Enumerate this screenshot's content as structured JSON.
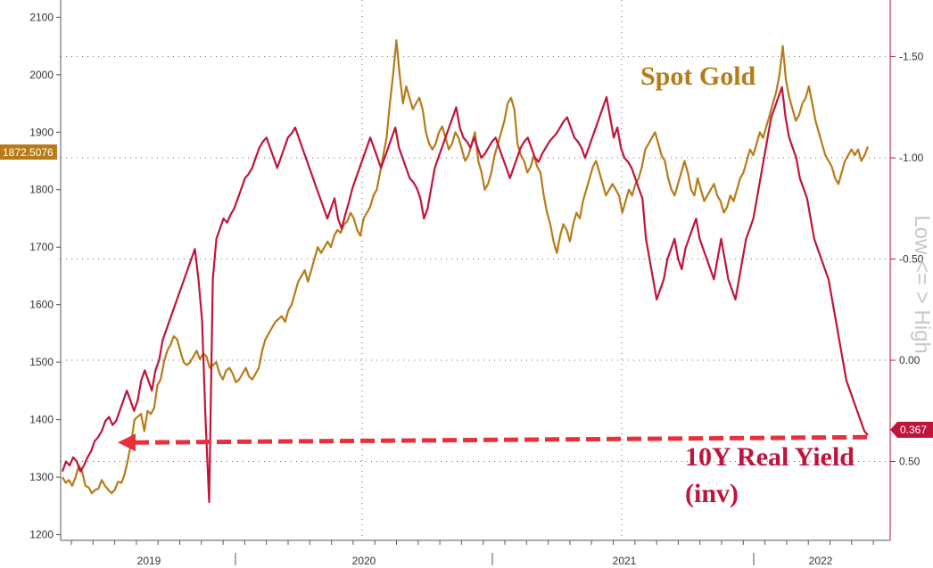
{
  "chart_data": {
    "type": "line",
    "title": "",
    "x_labels": [
      "2019",
      "2020",
      "2021",
      "2022"
    ],
    "left_axis": {
      "ticks": [
        "2100",
        "2000",
        "1900",
        "1800",
        "1700",
        "1600",
        "1500",
        "1400",
        "1300",
        "1200"
      ],
      "ylim": [
        1190,
        2130
      ]
    },
    "right_axis": {
      "ticks": [
        "-1.50",
        "-1.00",
        "-0.50",
        "0.00",
        "0.50"
      ],
      "ylim": [
        -1.78,
        0.89
      ],
      "inverted": true,
      "label": "Low <= > High"
    },
    "colors": {
      "gold": "#b87b19",
      "yield": "#c0143c",
      "arrow": "#e8303a",
      "label_bg_gold": "#b87b19",
      "label_bg_yield": "#c0143c"
    },
    "series": [
      {
        "name": "Spot Gold",
        "axis": "left",
        "values": [
          1300,
          1290,
          1295,
          1285,
          1300,
          1320,
          1310,
          1285,
          1282,
          1272,
          1278,
          1280,
          1295,
          1285,
          1278,
          1272,
          1278,
          1292,
          1290,
          1305,
          1330,
          1360,
          1400,
          1405,
          1410,
          1380,
          1415,
          1410,
          1420,
          1460,
          1470,
          1500,
          1520,
          1530,
          1545,
          1540,
          1520,
          1500,
          1495,
          1500,
          1510,
          1520,
          1505,
          1515,
          1510,
          1490,
          1495,
          1500,
          1480,
          1470,
          1485,
          1490,
          1480,
          1465,
          1470,
          1480,
          1490,
          1475,
          1470,
          1480,
          1490,
          1520,
          1540,
          1550,
          1560,
          1570,
          1575,
          1580,
          1570,
          1590,
          1600,
          1620,
          1640,
          1650,
          1660,
          1640,
          1660,
          1680,
          1700,
          1690,
          1700,
          1710,
          1700,
          1720,
          1730,
          1725,
          1740,
          1745,
          1760,
          1750,
          1730,
          1720,
          1750,
          1760,
          1770,
          1790,
          1800,
          1830,
          1860,
          1890,
          1950,
          2000,
          2060,
          2000,
          1950,
          1980,
          1960,
          1940,
          1950,
          1960,
          1940,
          1900,
          1880,
          1870,
          1880,
          1900,
          1910,
          1890,
          1870,
          1880,
          1900,
          1890,
          1870,
          1850,
          1860,
          1880,
          1900,
          1850,
          1830,
          1800,
          1810,
          1830,
          1860,
          1880,
          1900,
          1920,
          1950,
          1960,
          1940,
          1880,
          1860,
          1850,
          1830,
          1840,
          1860,
          1840,
          1830,
          1790,
          1760,
          1740,
          1710,
          1690,
          1720,
          1740,
          1730,
          1710,
          1740,
          1760,
          1750,
          1780,
          1800,
          1820,
          1840,
          1850,
          1830,
          1810,
          1790,
          1800,
          1810,
          1800,
          1790,
          1760,
          1780,
          1800,
          1790,
          1810,
          1820,
          1840,
          1870,
          1880,
          1890,
          1900,
          1880,
          1860,
          1850,
          1820,
          1800,
          1790,
          1810,
          1830,
          1850,
          1830,
          1800,
          1790,
          1820,
          1800,
          1780,
          1790,
          1800,
          1810,
          1790,
          1780,
          1760,
          1770,
          1790,
          1780,
          1800,
          1820,
          1830,
          1850,
          1870,
          1860,
          1880,
          1900,
          1890,
          1910,
          1930,
          1950,
          1970,
          2000,
          2050,
          1990,
          1960,
          1940,
          1920,
          1930,
          1950,
          1960,
          1980,
          1950,
          1920,
          1900,
          1880,
          1860,
          1850,
          1840,
          1820,
          1810,
          1830,
          1850,
          1860,
          1870,
          1860,
          1870,
          1850,
          1860,
          1875
        ]
      },
      {
        "name": "10Y Real Yield (inv)",
        "axis": "right",
        "values": [
          0.55,
          0.5,
          0.52,
          0.48,
          0.5,
          0.55,
          0.52,
          0.48,
          0.45,
          0.4,
          0.38,
          0.35,
          0.3,
          0.28,
          0.32,
          0.3,
          0.25,
          0.2,
          0.15,
          0.2,
          0.25,
          0.2,
          0.1,
          0.05,
          0.1,
          0.15,
          0.05,
          0.0,
          -0.1,
          -0.15,
          -0.2,
          -0.25,
          -0.3,
          -0.35,
          -0.4,
          -0.45,
          -0.5,
          -0.55,
          -0.4,
          -0.2,
          0.3,
          0.7,
          -0.4,
          -0.6,
          -0.65,
          -0.7,
          -0.68,
          -0.72,
          -0.75,
          -0.8,
          -0.85,
          -0.9,
          -0.92,
          -0.95,
          -1.0,
          -1.05,
          -1.08,
          -1.1,
          -1.05,
          -1.0,
          -0.95,
          -1.0,
          -1.05,
          -1.1,
          -1.12,
          -1.15,
          -1.1,
          -1.05,
          -1.0,
          -0.95,
          -0.9,
          -0.85,
          -0.8,
          -0.75,
          -0.7,
          -0.75,
          -0.8,
          -0.7,
          -0.65,
          -0.72,
          -0.78,
          -0.85,
          -0.9,
          -0.95,
          -1.0,
          -1.05,
          -1.1,
          -1.05,
          -1.0,
          -0.95,
          -1.0,
          -1.05,
          -1.1,
          -1.15,
          -1.05,
          -1.0,
          -0.95,
          -0.9,
          -0.88,
          -0.85,
          -0.8,
          -0.7,
          -0.75,
          -0.85,
          -0.95,
          -1.0,
          -1.05,
          -1.1,
          -1.15,
          -1.2,
          -1.25,
          -1.15,
          -1.1,
          -1.08,
          -1.05,
          -1.1,
          -1.05,
          -1.0,
          -1.02,
          -1.05,
          -1.08,
          -1.1,
          -1.05,
          -1.0,
          -0.95,
          -0.9,
          -0.95,
          -1.0,
          -1.05,
          -1.08,
          -1.1,
          -1.05,
          -1.0,
          -0.98,
          -1.02,
          -1.05,
          -1.08,
          -1.1,
          -1.12,
          -1.15,
          -1.18,
          -1.2,
          -1.15,
          -1.1,
          -1.08,
          -1.05,
          -1.0,
          -1.05,
          -1.1,
          -1.15,
          -1.2,
          -1.25,
          -1.3,
          -1.2,
          -1.1,
          -1.15,
          -1.05,
          -1.0,
          -0.98,
          -0.95,
          -0.9,
          -0.85,
          -0.8,
          -0.6,
          -0.5,
          -0.4,
          -0.3,
          -0.35,
          -0.4,
          -0.5,
          -0.55,
          -0.6,
          -0.5,
          -0.45,
          -0.55,
          -0.6,
          -0.65,
          -0.7,
          -0.6,
          -0.55,
          -0.5,
          -0.45,
          -0.4,
          -0.5,
          -0.6,
          -0.5,
          -0.4,
          -0.35,
          -0.3,
          -0.4,
          -0.5,
          -0.6,
          -0.65,
          -0.7,
          -0.8,
          -0.9,
          -1.0,
          -1.1,
          -1.2,
          -1.25,
          -1.3,
          -1.35,
          -1.2,
          -1.1,
          -1.05,
          -1.0,
          -0.9,
          -0.85,
          -0.8,
          -0.7,
          -0.6,
          -0.55,
          -0.5,
          -0.45,
          -0.4,
          -0.3,
          -0.2,
          -0.1,
          0.0,
          0.1,
          0.15,
          0.2,
          0.25,
          0.3,
          0.35,
          0.37
        ]
      }
    ],
    "current_values": {
      "gold": "1872.5076",
      "yield": "0.367"
    },
    "annotations": {
      "gold_label": "Spot Gold",
      "yield_label_line1": "10Y Real Yield",
      "yield_label_line2": "(inv)"
    }
  }
}
